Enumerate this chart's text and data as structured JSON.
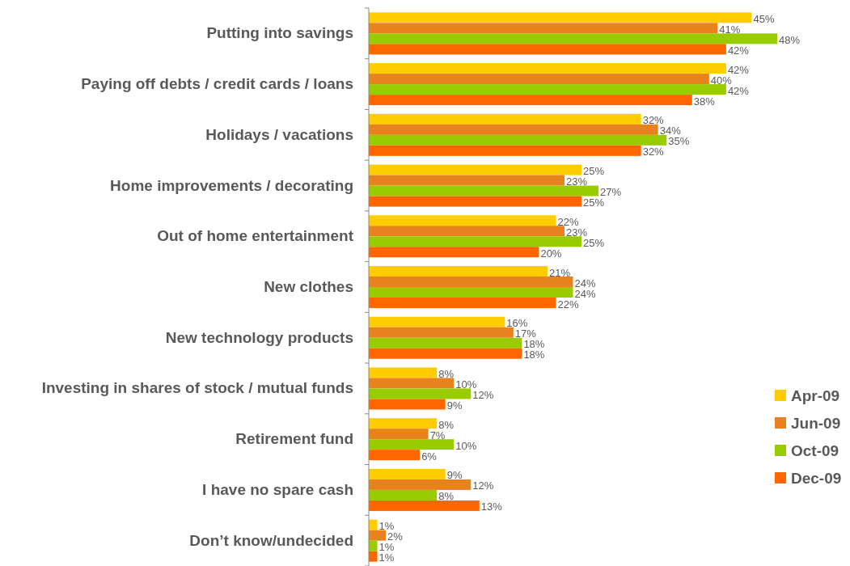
{
  "chart_data": {
    "type": "bar",
    "orientation": "horizontal",
    "legend": "right",
    "categories": [
      "Putting into savings",
      "Paying off debts / credit cards / loans",
      "Holidays / vacations",
      "Home improvements / decorating",
      "Out of home entertainment",
      "New clothes",
      "New technology products",
      "Investing in shares of stock / mutual funds",
      "Retirement fund",
      "I have no spare cash",
      "Don’t know/undecided"
    ],
    "series": [
      {
        "name": "Apr-09",
        "color": "#ffcc00",
        "values": [
          45,
          42,
          32,
          25,
          22,
          21,
          16,
          8,
          8,
          9,
          1
        ],
        "value_labels": [
          "45%",
          "42%",
          "32%",
          "25%",
          "22%",
          "21%",
          "16%",
          "8%",
          "8%",
          "9%",
          "1%"
        ]
      },
      {
        "name": "Jun-09",
        "color": "#e8821e",
        "values": [
          41,
          40,
          34,
          23,
          23,
          24,
          17,
          10,
          7,
          12,
          2
        ],
        "value_labels": [
          "41%",
          "40%",
          "34%",
          "23%",
          "23%",
          "24%",
          "17%",
          "10%",
          "7%",
          "12%",
          "2%"
        ]
      },
      {
        "name": "Oct-09",
        "color": "#99cc00",
        "values": [
          48,
          42,
          35,
          27,
          25,
          24,
          18,
          12,
          10,
          8,
          1
        ],
        "value_labels": [
          "48%",
          "42%",
          "35%",
          "27%",
          "25%",
          "24%",
          "18%",
          "12%",
          "10%",
          "8%",
          "1%"
        ]
      },
      {
        "name": "Dec-09",
        "color": "#ff6600",
        "values": [
          42,
          38,
          32,
          25,
          20,
          22,
          18,
          9,
          6,
          13,
          1
        ],
        "value_labels": [
          "42%",
          "38%",
          "32%",
          "25%",
          "20%",
          "22%",
          "18%",
          "9%",
          "6%",
          "13%",
          "1%"
        ]
      }
    ]
  }
}
